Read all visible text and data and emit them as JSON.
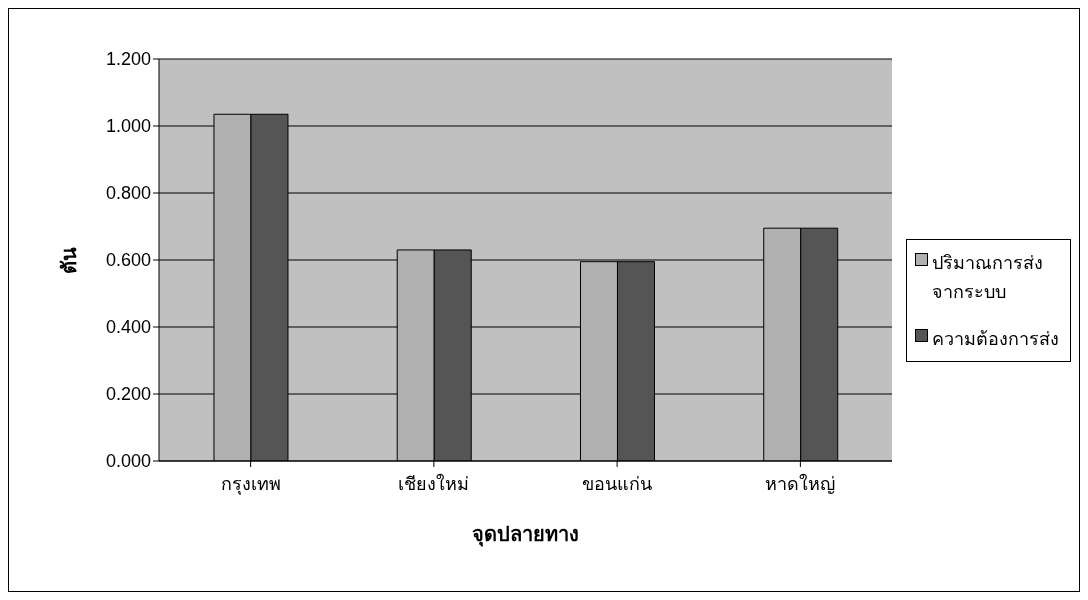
{
  "chart_data": {
    "type": "bar",
    "xlabel": "จุดปลายทาง",
    "ylabel": "ตัน",
    "categories": [
      "กรุงเทพ",
      "เชียงใหม่",
      "ขอนแก่น",
      "หาดใหญ่"
    ],
    "series": [
      {
        "name": "ปริมาณการส่งจากระบบ",
        "color": "#b0b0b0",
        "values": [
          1.035,
          0.63,
          0.595,
          0.695
        ]
      },
      {
        "name": "ความต้องการส่ง",
        "color": "#555555",
        "values": [
          1.035,
          0.63,
          0.595,
          0.695
        ]
      }
    ],
    "ylim": [
      0,
      1.2
    ],
    "yticks": [
      {
        "value": 0,
        "label": "0.000"
      },
      {
        "value": 0.2,
        "label": "0.200"
      },
      {
        "value": 0.4,
        "label": "0.400"
      },
      {
        "value": 0.6,
        "label": "0.600"
      },
      {
        "value": 0.8,
        "label": "0.800"
      },
      {
        "value": 1.0,
        "label": "1.000"
      },
      {
        "value": 1.2,
        "label": "1.200"
      }
    ],
    "grid": "y",
    "legend": "right"
  }
}
